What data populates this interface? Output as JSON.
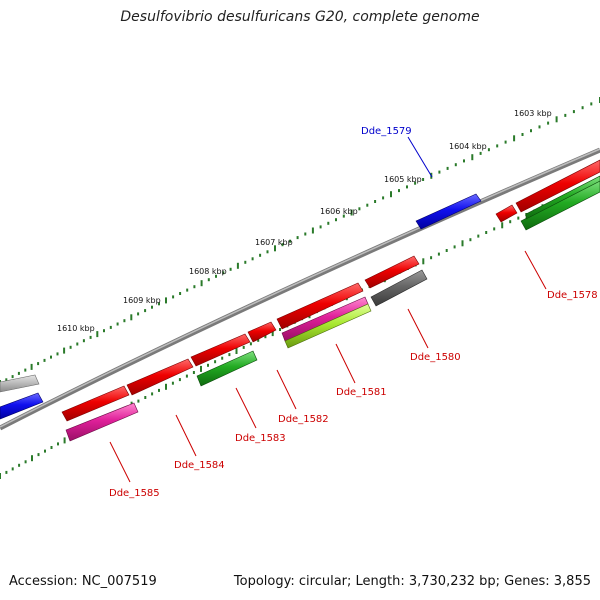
{
  "title": "Desulfovibrio desulfuricans G20, complete genome",
  "footer": {
    "accession": "Accession: NC_007519",
    "summary": "Topology: circular; Length: 3,730,232 bp; Genes: 3,855"
  },
  "scale_labels": [
    "1603 kbp",
    "1604 kbp",
    "1605 kbp",
    "1606 kbp",
    "1607 kbp",
    "1608 kbp",
    "1609 kbp",
    "1610 kbp"
  ],
  "gene_labels": [
    {
      "text": "Dde_1579",
      "color": "#0000cc"
    },
    {
      "text": "Dde_1578",
      "color": "#cc0000"
    },
    {
      "text": "Dde_1580",
      "color": "#cc0000"
    },
    {
      "text": "Dde_1581",
      "color": "#cc0000"
    },
    {
      "text": "Dde_1582",
      "color": "#cc0000"
    },
    {
      "text": "Dde_1583",
      "color": "#cc0000"
    },
    {
      "text": "Dde_1584",
      "color": "#cc0000"
    },
    {
      "text": "Dde_1585",
      "color": "#cc0000"
    }
  ],
  "colors": {
    "cds_red": "#e00000",
    "cds_blue": "#1010e0",
    "cds_green": "#22aa22",
    "cds_magenta": "#e0209a",
    "cds_lime": "#a8e830",
    "cds_gray": "#666666",
    "cds_lightgray": "#b8b8b8",
    "backbone": "#888888",
    "ticks": "#2a7a2a"
  }
}
